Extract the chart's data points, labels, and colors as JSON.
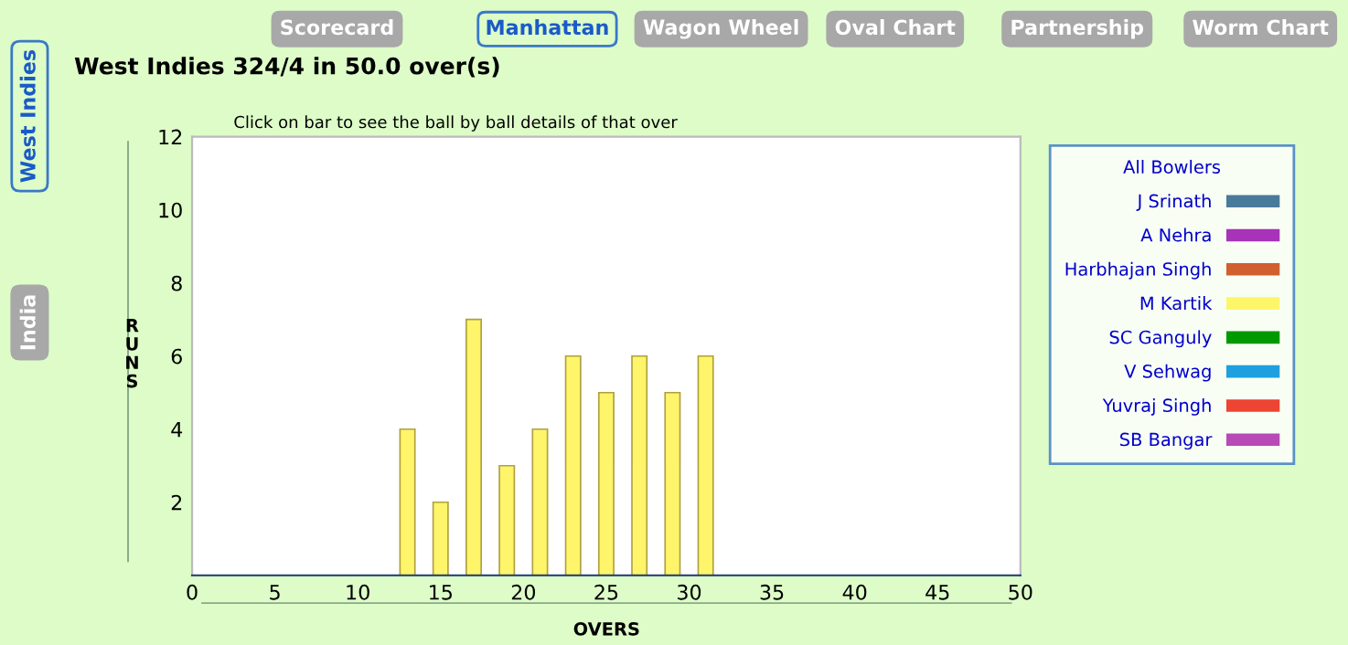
{
  "chart_data": {
    "type": "bar",
    "title": "West Indies 324/4 in 50.0 over(s)",
    "subtitle": "Click on bar to see the ball by ball details of that over",
    "xlabel": "OVERS",
    "ylabel": "RUNS",
    "legend_title": "All Bowlers",
    "annotations": [
      "Scorecard",
      "Manhattan",
      "Wagon Wheel",
      "Oval Chart",
      "Partnership",
      "Worm Chart",
      "West Indies",
      "India"
    ],
    "x": [
      13,
      15,
      17,
      19,
      21,
      23,
      25,
      27,
      29,
      31
    ],
    "series": [
      {
        "name": "J Srinath",
        "color": "#4a7a9a",
        "values": [
          null,
          null,
          null,
          null,
          null,
          null,
          null,
          null,
          null,
          null
        ]
      },
      {
        "name": "A Nehra",
        "color": "#a733b8",
        "values": [
          null,
          null,
          null,
          null,
          null,
          null,
          null,
          null,
          null,
          null
        ]
      },
      {
        "name": "Harbhajan Singh",
        "color": "#d0602e",
        "values": [
          null,
          null,
          null,
          null,
          null,
          null,
          null,
          null,
          null,
          null
        ]
      },
      {
        "name": "M Kartik",
        "color": "#fff56a",
        "values": [
          4,
          2,
          7,
          3,
          4,
          6,
          5,
          6,
          5,
          6
        ]
      },
      {
        "name": "SC Ganguly",
        "color": "#009a00",
        "values": [
          null,
          null,
          null,
          null,
          null,
          null,
          null,
          null,
          null,
          null
        ]
      },
      {
        "name": "V Sehwag",
        "color": "#1ea0e0",
        "values": [
          null,
          null,
          null,
          null,
          null,
          null,
          null,
          null,
          null,
          null
        ]
      },
      {
        "name": "Yuvraj Singh",
        "color": "#ee4433",
        "values": [
          null,
          null,
          null,
          null,
          null,
          null,
          null,
          null,
          null,
          null
        ]
      },
      {
        "name": "SB Bangar",
        "color": "#b84ab8",
        "values": [
          null,
          null,
          null,
          null,
          null,
          null,
          null,
          null,
          null,
          null
        ]
      }
    ],
    "xlim": [
      0,
      50
    ],
    "xticks": [
      0,
      5,
      10,
      15,
      20,
      25,
      30,
      35,
      40,
      45,
      50
    ],
    "ylim": [
      0,
      12
    ],
    "yticks": [
      2,
      4,
      6,
      8,
      10,
      12
    ],
    "legend": "right",
    "grid": false
  }
}
